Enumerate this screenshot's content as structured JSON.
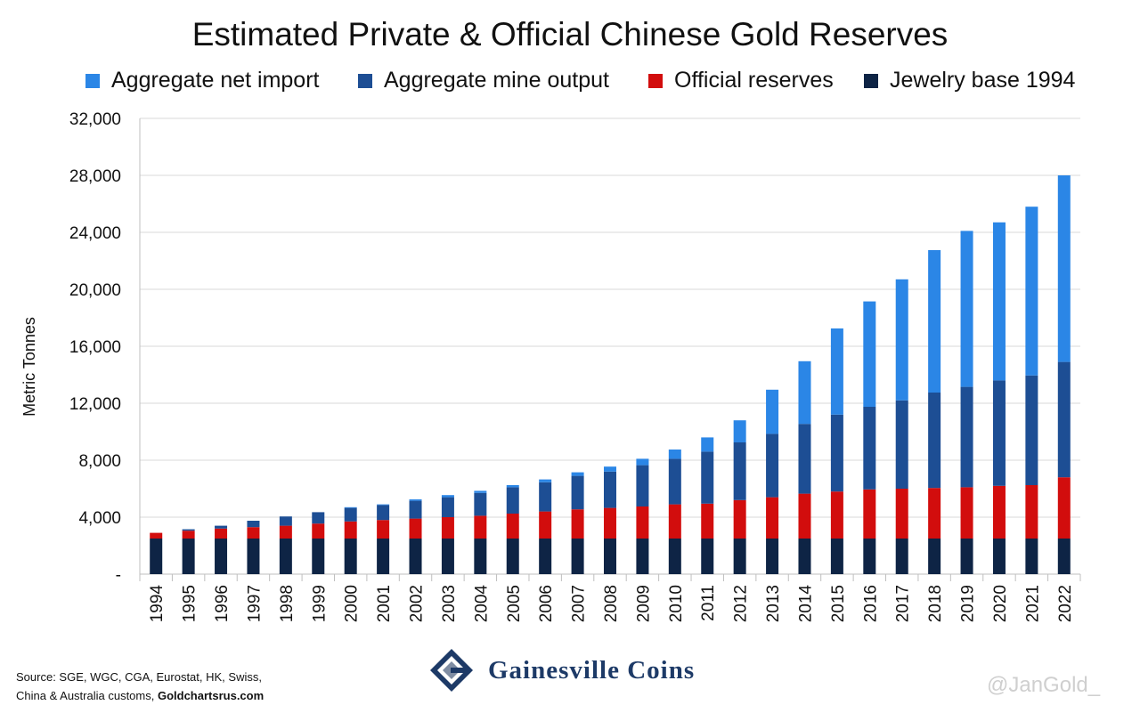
{
  "chart_data": {
    "type": "bar",
    "stacked": true,
    "title": "Estimated Private & Official Chinese Gold Reserves",
    "ylabel": "Metric Tonnes",
    "xlabel": "",
    "ylim": [
      0,
      32000
    ],
    "yticks": [
      "-",
      "4,000",
      "8,000",
      "12,000",
      "16,000",
      "20,000",
      "24,000",
      "28,000",
      "32,000"
    ],
    "grid": true,
    "legend_position": "top",
    "categories": [
      "1994",
      "1995",
      "1996",
      "1997",
      "1998",
      "1999",
      "2000",
      "2001",
      "2002",
      "2003",
      "2004",
      "2005",
      "2006",
      "2007",
      "2008",
      "2009",
      "2010",
      "2011",
      "2012",
      "2013",
      "2014",
      "2015",
      "2016",
      "2017",
      "2018",
      "2019",
      "2020",
      "2021",
      "2022"
    ],
    "series": [
      {
        "name": "Jewelry base 1994",
        "color": "#0e2445",
        "values": [
          2500,
          2500,
          2500,
          2500,
          2500,
          2500,
          2500,
          2500,
          2500,
          2500,
          2500,
          2500,
          2500,
          2500,
          2500,
          2500,
          2500,
          2500,
          2500,
          2500,
          2500,
          2500,
          2500,
          2500,
          2500,
          2500,
          2500,
          2500,
          2500
        ]
      },
      {
        "name": "Official reserves",
        "color": "#d20d0d",
        "values": [
          400,
          550,
          700,
          800,
          900,
          1050,
          1200,
          1300,
          1400,
          1500,
          1600,
          1750,
          1900,
          2050,
          2150,
          2250,
          2400,
          2450,
          2700,
          2900,
          3150,
          3300,
          3450,
          3500,
          3550,
          3600,
          3700,
          3750,
          4300
        ]
      },
      {
        "name": "Aggregate mine output",
        "color": "#1d4e94",
        "values": [
          0,
          100,
          200,
          450,
          650,
          800,
          950,
          1050,
          1250,
          1400,
          1600,
          1850,
          2050,
          2350,
          2550,
          2900,
          3200,
          3650,
          4050,
          4450,
          4900,
          5400,
          5800,
          6200,
          6700,
          7050,
          7400,
          7700,
          8100
        ]
      },
      {
        "name": "Aggregate net import",
        "color": "#2b86e6",
        "values": [
          0,
          0,
          0,
          0,
          0,
          0,
          50,
          50,
          100,
          150,
          150,
          150,
          200,
          250,
          350,
          450,
          650,
          1000,
          1550,
          3100,
          4400,
          6050,
          7400,
          8500,
          10000,
          10950,
          11100,
          11850,
          13100
        ]
      }
    ]
  },
  "source": {
    "line1": "Source: SGE, WGC, CGA, Eurostat, HK, Swiss,",
    "line2_prefix": "China & Australia customs, ",
    "line2_bold": "Goldchartsrus.com"
  },
  "logo": {
    "text": "Gainesville Coins",
    "icon": "gainesville-g-logo-icon"
  },
  "watermark": "@JanGold_"
}
